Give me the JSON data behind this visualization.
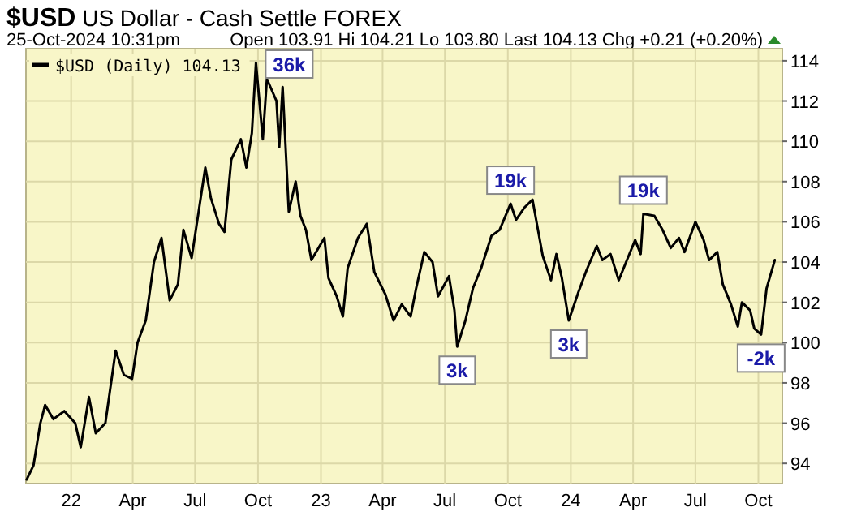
{
  "chart_data": {
    "type": "line",
    "title": "$USD US Dollar - Cash Settle FOREX",
    "subtitle": "25-Oct-2024 10:31pm",
    "annotations": [
      "Open 103.91 Hi 104.21 Lo 103.80 Last 104.13 Chg +0.21 (+0.20%)",
      {
        "text": "36k",
        "x": "2022-09-28",
        "y": 113.9
      },
      {
        "text": "3k",
        "x": "2023-07-19",
        "y": 99.8
      },
      {
        "text": "19k",
        "x": "2023-10-05",
        "y": 106.9
      },
      {
        "text": "3k",
        "x": "2023-12-29",
        "y": 101.1
      },
      {
        "text": "19k",
        "x": "2024-04-16",
        "y": 106.4
      },
      {
        "text": "-2k",
        "x": "2024-10-05",
        "y": 100.4
      }
    ],
    "x": [
      "2021-10-28",
      "2021-11-07",
      "2021-11-17",
      "2021-11-24",
      "2021-12-06",
      "2021-12-22",
      "2022-01-07",
      "2022-01-15",
      "2022-01-27",
      "2022-02-06",
      "2022-02-20",
      "2022-03-07",
      "2022-03-19",
      "2022-03-31",
      "2022-04-08",
      "2022-04-20",
      "2022-05-02",
      "2022-05-13",
      "2022-05-25",
      "2022-06-06",
      "2022-06-14",
      "2022-06-26",
      "2022-07-08",
      "2022-07-16",
      "2022-07-24",
      "2022-08-05",
      "2022-08-13",
      "2022-08-23",
      "2022-09-06",
      "2022-09-14",
      "2022-09-22",
      "2022-09-28",
      "2022-10-08",
      "2022-10-14",
      "2022-10-28",
      "2022-11-01",
      "2022-11-06",
      "2022-11-15",
      "2022-11-25",
      "2022-12-02",
      "2022-12-10",
      "2022-12-18",
      "2023-01-06",
      "2023-01-12",
      "2023-01-24",
      "2023-02-02",
      "2023-02-09",
      "2023-02-24",
      "2023-03-09",
      "2023-03-20",
      "2023-04-05",
      "2023-04-17",
      "2023-04-29",
      "2023-05-12",
      "2023-05-20",
      "2023-06-01",
      "2023-06-13",
      "2023-06-21",
      "2023-07-07",
      "2023-07-15",
      "2023-07-19",
      "2023-07-31",
      "2023-08-11",
      "2023-08-23",
      "2023-09-07",
      "2023-09-19",
      "2023-10-05",
      "2023-10-13",
      "2023-10-25",
      "2023-11-06",
      "2023-11-14",
      "2023-11-21",
      "2023-12-03",
      "2023-12-11",
      "2023-12-19",
      "2023-12-29",
      "2024-01-12",
      "2024-01-24",
      "2024-02-08",
      "2024-02-16",
      "2024-02-28",
      "2024-03-11",
      "2024-03-23",
      "2024-04-04",
      "2024-04-12",
      "2024-04-16",
      "2024-05-02",
      "2024-05-14",
      "2024-05-26",
      "2024-06-07",
      "2024-06-15",
      "2024-07-01",
      "2024-07-13",
      "2024-07-21",
      "2024-08-02",
      "2024-08-10",
      "2024-08-22",
      "2024-09-01",
      "2024-09-07",
      "2024-09-19",
      "2024-09-25",
      "2024-10-05",
      "2024-10-13",
      "2024-10-25"
    ],
    "series": [
      {
        "name": "$USD (Daily) 104.13",
        "color": "#000000",
        "values": [
          93.2,
          93.9,
          96.0,
          96.9,
          96.2,
          96.6,
          96.0,
          94.8,
          97.3,
          95.5,
          96.0,
          99.6,
          98.4,
          98.2,
          100.0,
          101.1,
          104.0,
          105.2,
          102.1,
          102.9,
          105.6,
          104.2,
          106.9,
          108.7,
          107.2,
          105.9,
          105.5,
          109.1,
          110.1,
          108.7,
          110.4,
          113.9,
          110.1,
          113.1,
          112.0,
          109.7,
          112.7,
          106.5,
          108.0,
          106.3,
          105.6,
          104.1,
          105.2,
          103.2,
          102.3,
          101.3,
          103.7,
          105.2,
          105.9,
          103.5,
          102.4,
          101.1,
          101.9,
          101.3,
          102.7,
          104.5,
          104.0,
          102.3,
          103.3,
          101.6,
          99.8,
          101.1,
          102.7,
          103.7,
          105.3,
          105.6,
          106.9,
          106.1,
          106.7,
          107.1,
          105.6,
          104.3,
          103.1,
          104.4,
          103.2,
          101.1,
          102.5,
          103.6,
          104.8,
          104.1,
          104.4,
          103.1,
          104.1,
          105.1,
          104.4,
          106.4,
          106.3,
          105.6,
          104.7,
          105.2,
          104.5,
          106.0,
          105.1,
          104.1,
          104.5,
          102.9,
          101.9,
          100.8,
          102.0,
          101.6,
          100.7,
          100.4,
          102.7,
          104.1
        ]
      }
    ],
    "xlim": [
      "2021-10-27",
      "2024-11-05"
    ],
    "xticks": [
      {
        "value": "2022-01-01",
        "label": "22"
      },
      {
        "value": "2022-04-01",
        "label": "Apr"
      },
      {
        "value": "2022-07-01",
        "label": "Jul"
      },
      {
        "value": "2022-10-01",
        "label": "Oct"
      },
      {
        "value": "2023-01-01",
        "label": "23"
      },
      {
        "value": "2023-04-01",
        "label": "Apr"
      },
      {
        "value": "2023-07-01",
        "label": "Jul"
      },
      {
        "value": "2023-10-01",
        "label": "Oct"
      },
      {
        "value": "2024-01-01",
        "label": "24"
      },
      {
        "value": "2024-04-01",
        "label": "Apr"
      },
      {
        "value": "2024-07-01",
        "label": "Jul"
      },
      {
        "value": "2024-10-01",
        "label": "Oct"
      }
    ],
    "ylim": [
      93,
      114.6
    ],
    "yticks": [
      94,
      96,
      98,
      100,
      102,
      104,
      106,
      108,
      110,
      112,
      114
    ],
    "grid": true,
    "legend": "top left",
    "line_style": "solid",
    "marker": "none"
  }
}
